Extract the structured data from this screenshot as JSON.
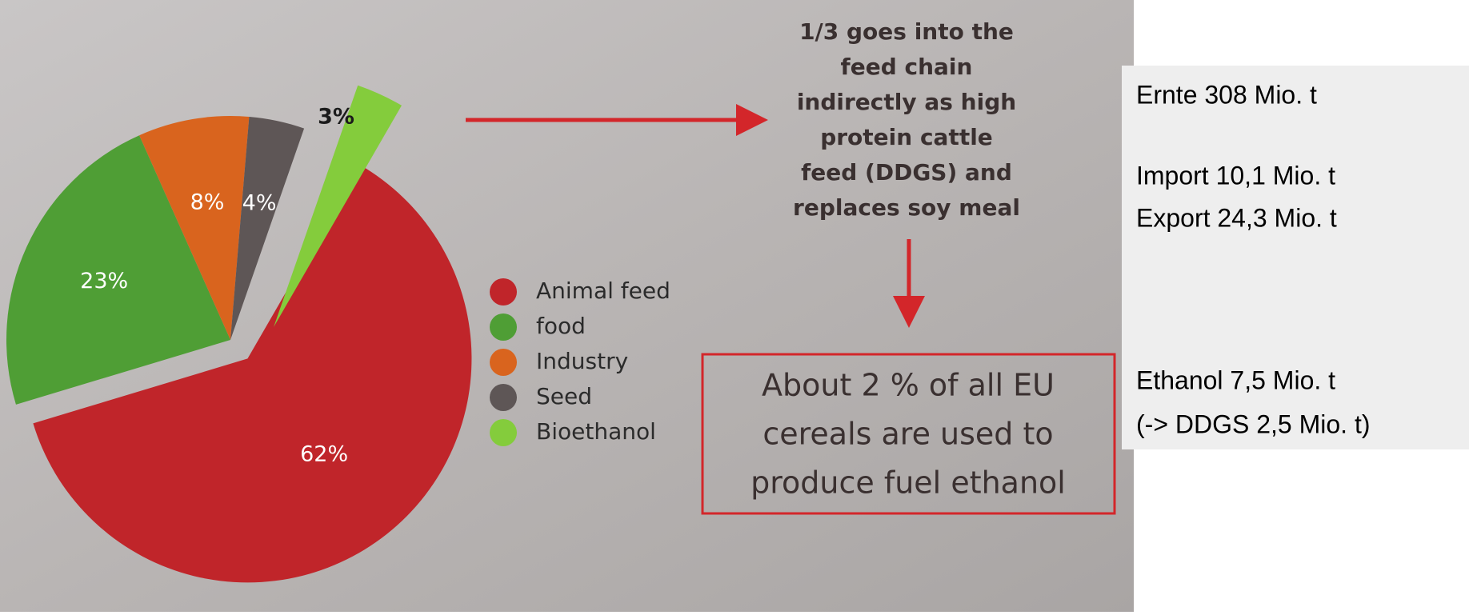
{
  "chart_data": {
    "type": "pie",
    "categories": [
      "Animal feed",
      "food",
      "Industry",
      "Seed",
      "Bioethanol"
    ],
    "values": [
      62,
      23,
      8,
      4,
      3
    ],
    "value_labels": [
      "62%",
      "23%",
      "8%",
      "4%",
      "3%"
    ],
    "colors": [
      "#c0252a",
      "#4f9e35",
      "#d9641e",
      "#5e5656",
      "#84cc3c"
    ],
    "annotations": {
      "feed_chain": [
        "1/3 goes into the",
        "feed chain",
        "indirectly as high",
        "protein cattle",
        "feed (DDGS) and",
        "replaces soy meal"
      ],
      "box": [
        "About 2 % of all EU",
        "cereals are used to",
        "produce fuel ethanol"
      ]
    },
    "side_notes": [
      "Ernte 308 Mio. t",
      "Import 10,1 Mio. t",
      "Export 24,3 Mio. t",
      "Ethanol 7,5 Mio. t",
      "(-> DDGS 2,5 Mio. t)"
    ]
  }
}
